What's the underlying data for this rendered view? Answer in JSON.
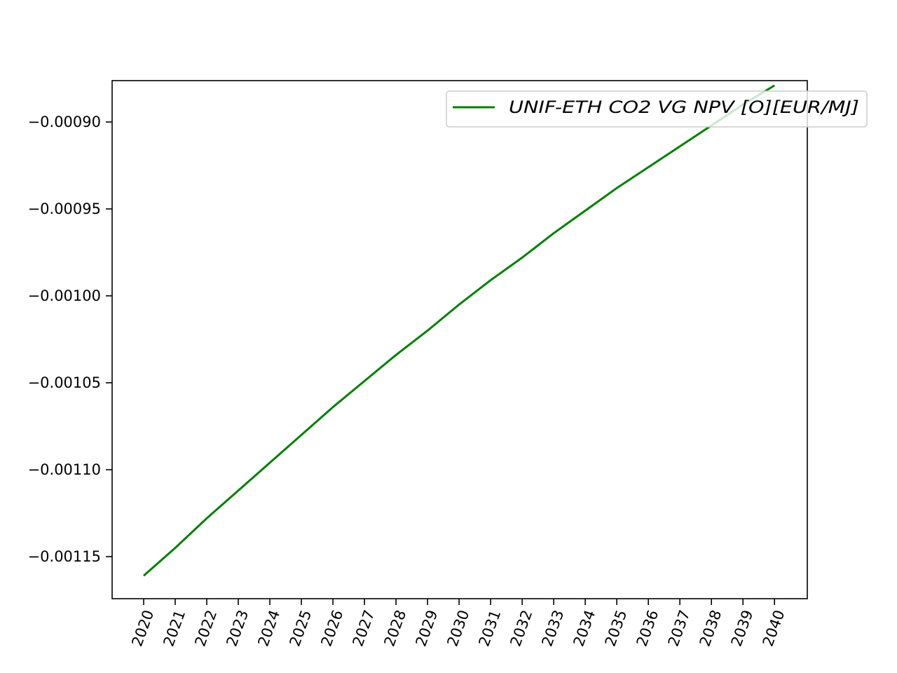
{
  "chart_data": {
    "type": "line",
    "title": "",
    "xlabel": "",
    "ylabel": "",
    "x": [
      2020,
      2021,
      2022,
      2023,
      2024,
      2025,
      2026,
      2027,
      2028,
      2029,
      2030,
      2031,
      2032,
      2033,
      2034,
      2035,
      2036,
      2037,
      2038,
      2039,
      2040
    ],
    "x_tick_labels": [
      "2020",
      "2021",
      "2022",
      "2023",
      "2024",
      "2025",
      "2026",
      "2027",
      "2028",
      "2029",
      "2030",
      "2031",
      "2032",
      "2033",
      "2034",
      "2035",
      "2036",
      "2037",
      "2038",
      "2039",
      "2040"
    ],
    "series": [
      {
        "name": "UNIF-ETH CO2 VG NPV [O][EUR/MJ]",
        "color": "#008000",
        "values": [
          -0.001161,
          -0.001145,
          -0.001128,
          -0.001112,
          -0.001096,
          -0.00108,
          -0.001064,
          -0.001049,
          -0.001034,
          -0.00102,
          -0.001005,
          -0.000991,
          -0.000978,
          -0.000964,
          -0.000951,
          -0.000938,
          -0.000926,
          -0.000914,
          -0.000902,
          -0.00089,
          -0.000879
        ]
      }
    ],
    "y_ticks": [
      -0.00115,
      -0.0011,
      -0.00105,
      -0.001,
      -0.00095,
      -0.0009
    ],
    "y_tick_labels": [
      "−0.00115",
      "−0.00110",
      "−0.00105",
      "−0.00100",
      "−0.00095",
      "−0.00090"
    ],
    "xlim": [
      2019,
      2041.04
    ],
    "ylim": [
      -0.0011742,
      -0.0008762
    ],
    "grid": false,
    "legend_position": "top-right"
  }
}
